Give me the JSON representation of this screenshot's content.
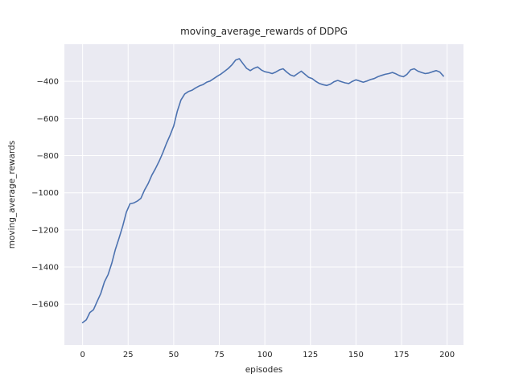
{
  "chart_data": {
    "type": "line",
    "title": "moving_average_rewards of DDPG",
    "xlabel": "episodes",
    "ylabel": "moving_average_rewards",
    "x_ticks": [
      0,
      25,
      50,
      75,
      100,
      125,
      150,
      175,
      200
    ],
    "y_ticks": [
      -400,
      -600,
      -800,
      -1000,
      -1200,
      -1400,
      -1600
    ],
    "xlim": [
      -10,
      209
    ],
    "ylim": [
      -1820,
      -200
    ],
    "grid": true,
    "legend": false,
    "colors": {
      "line": "#4c72b0",
      "plot_background": "#eaeaf2",
      "grid": "#ffffff",
      "text": "#262626"
    },
    "series": [
      {
        "name": "moving_average_rewards",
        "x": [
          0,
          2,
          4,
          6,
          8,
          10,
          12,
          14,
          16,
          18,
          20,
          22,
          24,
          26,
          28,
          30,
          32,
          34,
          36,
          38,
          40,
          42,
          44,
          46,
          48,
          50,
          52,
          54,
          56,
          58,
          60,
          62,
          64,
          66,
          68,
          70,
          72,
          74,
          76,
          78,
          80,
          82,
          84,
          86,
          88,
          90,
          92,
          94,
          96,
          98,
          100,
          102,
          104,
          106,
          108,
          110,
          112,
          114,
          116,
          118,
          120,
          122,
          124,
          126,
          128,
          130,
          132,
          134,
          136,
          138,
          140,
          142,
          144,
          146,
          148,
          150,
          152,
          154,
          156,
          158,
          160,
          162,
          164,
          166,
          168,
          170,
          172,
          174,
          176,
          178,
          180,
          182,
          184,
          186,
          188,
          190,
          192,
          194,
          196,
          198
        ],
        "y": [
          -1700,
          -1685,
          -1645,
          -1630,
          -1585,
          -1542,
          -1480,
          -1440,
          -1380,
          -1305,
          -1245,
          -1180,
          -1105,
          -1060,
          -1055,
          -1045,
          -1030,
          -985,
          -950,
          -905,
          -870,
          -830,
          -785,
          -735,
          -690,
          -640,
          -560,
          -500,
          -468,
          -455,
          -448,
          -435,
          -425,
          -418,
          -405,
          -398,
          -385,
          -372,
          -360,
          -345,
          -330,
          -310,
          -285,
          -278,
          -305,
          -330,
          -342,
          -330,
          -322,
          -338,
          -348,
          -352,
          -358,
          -350,
          -338,
          -332,
          -350,
          -365,
          -372,
          -358,
          -345,
          -362,
          -378,
          -385,
          -400,
          -412,
          -418,
          -422,
          -415,
          -402,
          -395,
          -402,
          -408,
          -412,
          -400,
          -392,
          -398,
          -405,
          -398,
          -390,
          -385,
          -375,
          -368,
          -362,
          -358,
          -352,
          -360,
          -370,
          -375,
          -362,
          -338,
          -332,
          -345,
          -352,
          -358,
          -355,
          -348,
          -342,
          -350,
          -372
        ]
      }
    ]
  }
}
